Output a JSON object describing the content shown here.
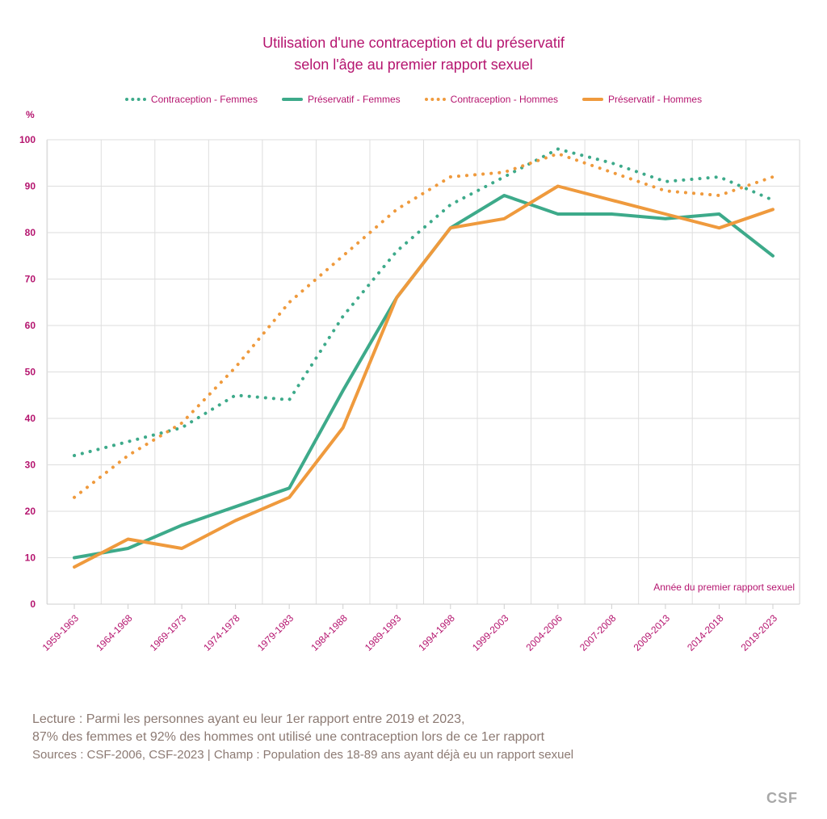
{
  "chart_data": {
    "type": "line",
    "title": "Utilisation d'une contraception et du préservatif",
    "subtitle": "selon l'âge au premier rapport sexuel",
    "ylabel": "%",
    "xlabel": "Année du premier rapport sexuel",
    "ylim": [
      0,
      100
    ],
    "yticks": [
      0,
      10,
      20,
      30,
      40,
      50,
      60,
      70,
      80,
      90,
      100
    ],
    "categories": [
      "1959-1963",
      "1964-1968",
      "1969-1973",
      "1974-1978",
      "1979-1983",
      "1984-1988",
      "1989-1993",
      "1994-1998",
      "1999-2003",
      "2004-2006",
      "2007-2008",
      "2009-2013",
      "2014-2018",
      "2019-2023"
    ],
    "grid": true,
    "legend_position": "top",
    "series": [
      {
        "name": "Contraception - Femmes",
        "color": "#3daa8a",
        "style": "dotted",
        "values": [
          32,
          35,
          38,
          45,
          44,
          62,
          76,
          86,
          92,
          98,
          95,
          91,
          92,
          87
        ]
      },
      {
        "name": "Préservatif - Femmes",
        "color": "#3daa8a",
        "style": "solid",
        "values": [
          10,
          12,
          17,
          21,
          25,
          46,
          66,
          81,
          88,
          84,
          84,
          83,
          84,
          75
        ]
      },
      {
        "name": "Contraception - Hommes",
        "color": "#ef9a3d",
        "style": "dotted",
        "values": [
          23,
          32,
          39,
          51,
          65,
          75,
          85,
          92,
          93,
          97,
          93,
          89,
          88,
          92
        ]
      },
      {
        "name": "Préservatif - Hommes",
        "color": "#ef9a3d",
        "style": "solid",
        "values": [
          8,
          14,
          12,
          18,
          23,
          38,
          66,
          81,
          83,
          90,
          87,
          84,
          81,
          85
        ]
      }
    ]
  },
  "notes": {
    "line1": "Lecture : Parmi les personnes ayant eu leur 1er rapport  entre 2019 et 2023,",
    "line2": "87% des femmes et 92% des hommes ont utilisé une contraception lors de ce 1er rapport",
    "sources": "Sources : CSF-2006, CSF-2023  |  Champ : Population des 18-89 ans ayant déjà eu un rapport sexuel"
  },
  "logo": "CSF"
}
